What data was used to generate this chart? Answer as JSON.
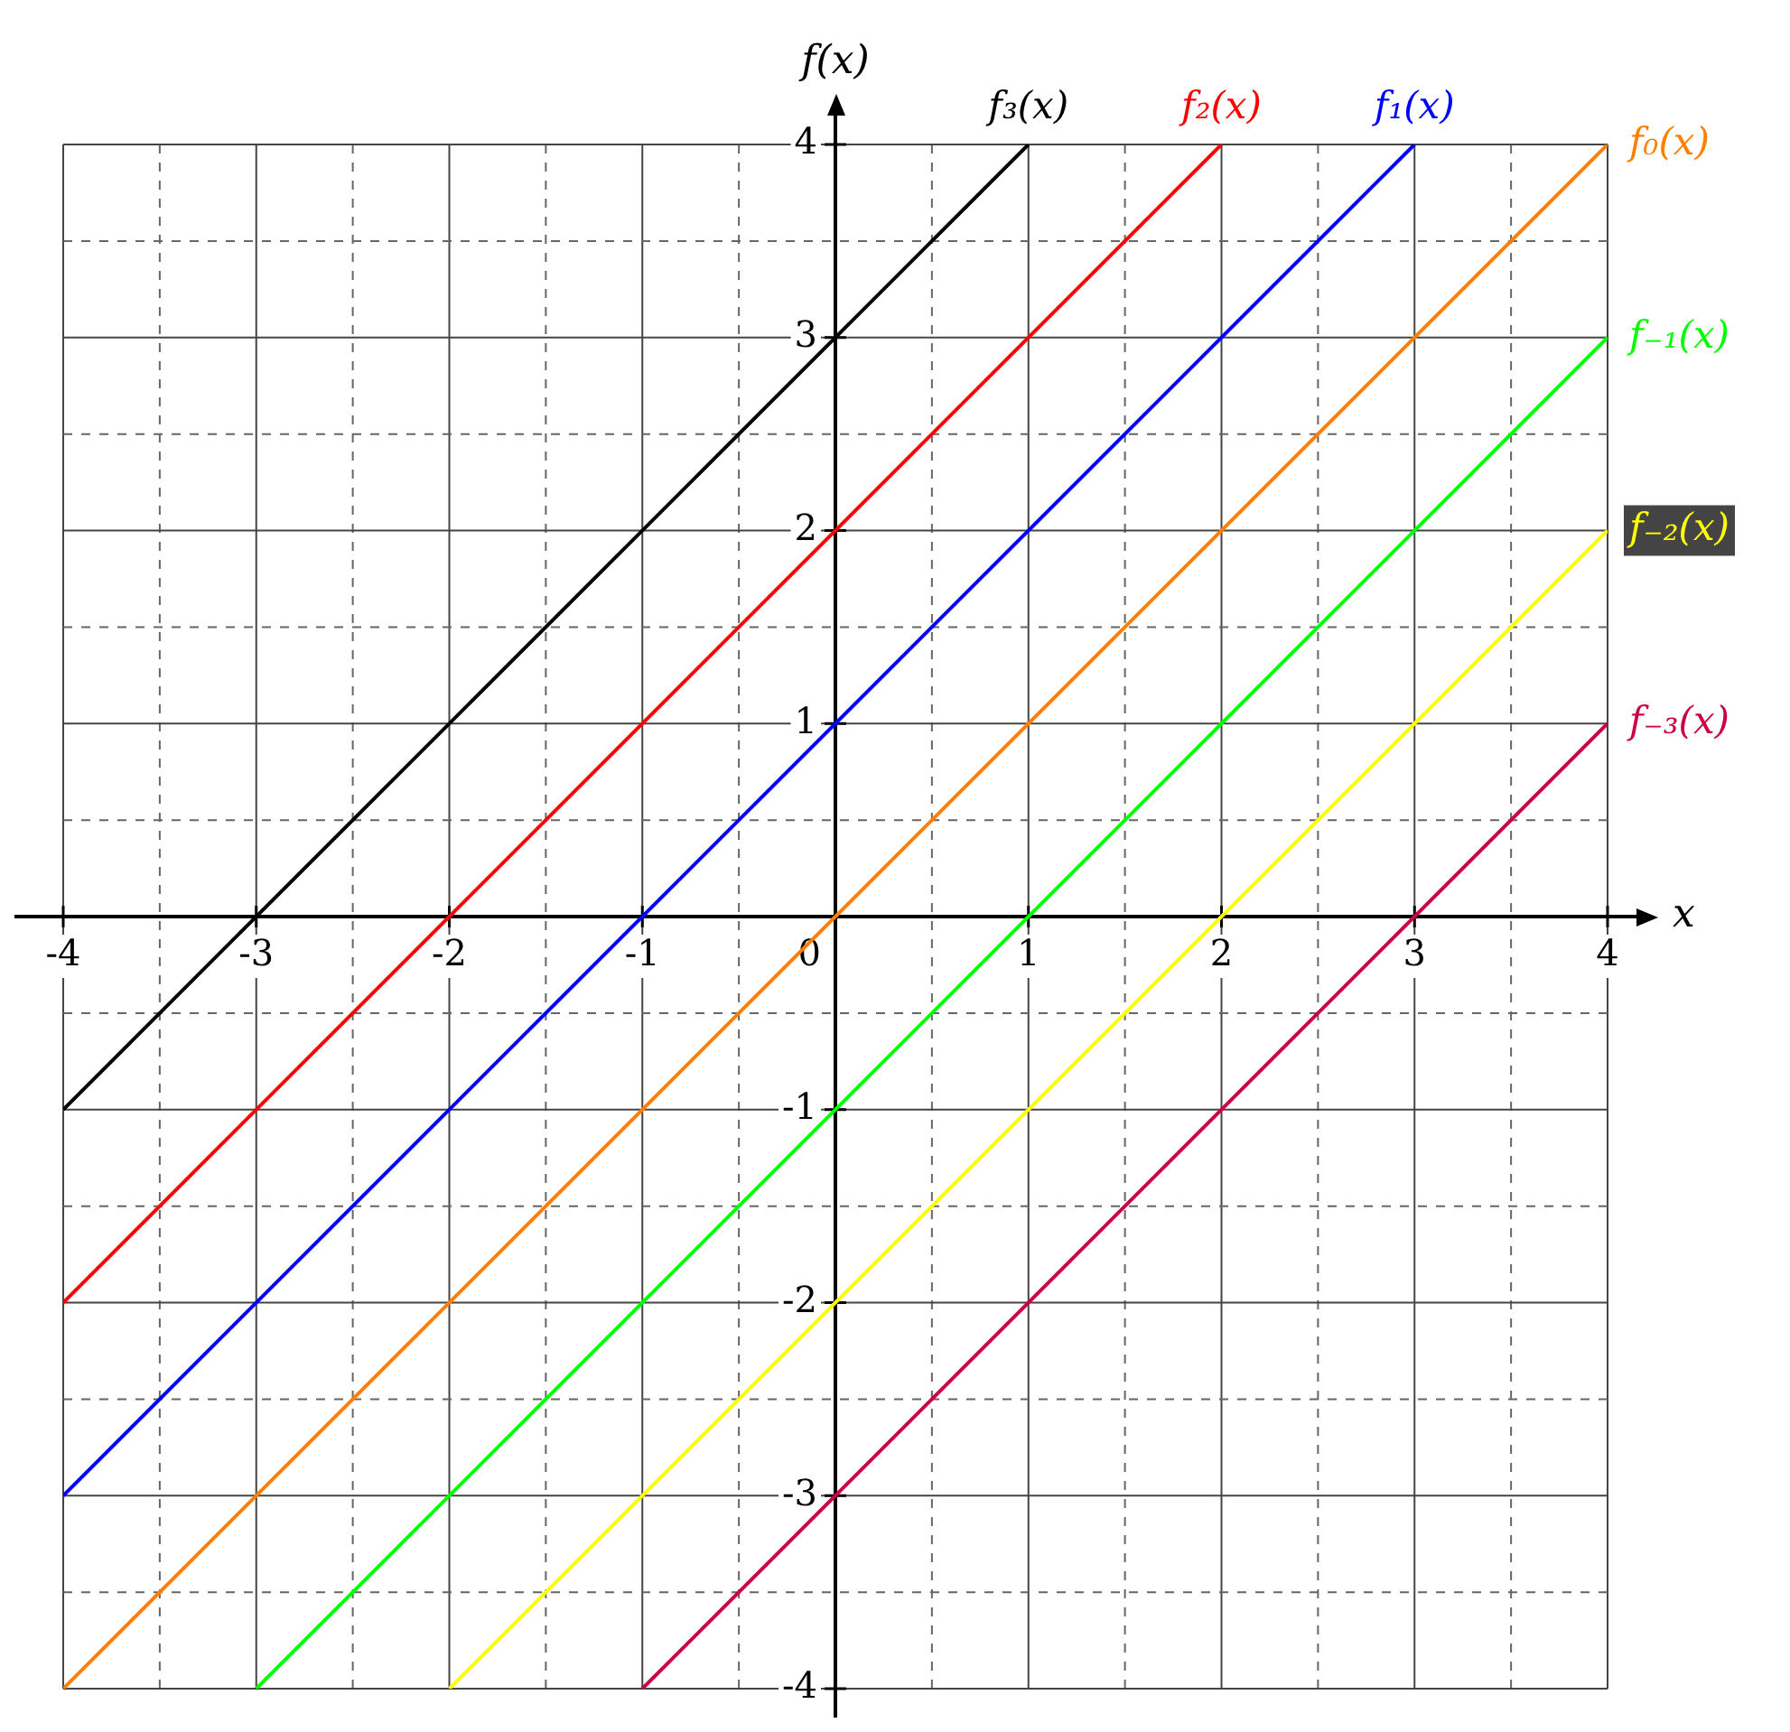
{
  "chart_data": {
    "type": "line",
    "xlabel": "x",
    "ylabel": "f(x)",
    "xlim": [
      -4,
      4
    ],
    "ylim": [
      -4,
      4
    ],
    "xticks": [
      -4,
      {
        "value": -3.5,
        "label": null
      },
      -3,
      {
        "value": -2.5,
        "label": null
      },
      -2,
      {
        "value": -1.5,
        "label": null
      },
      -1,
      {
        "value": -0.5,
        "label": null
      },
      0,
      {
        "value": 0.5,
        "label": null
      },
      1,
      {
        "value": 1.5,
        "label": null
      },
      2,
      {
        "value": 2.5,
        "label": null
      },
      3,
      {
        "value": 3.5,
        "label": null
      },
      4
    ],
    "yticks": [
      -4,
      {
        "value": -3.5,
        "label": null
      },
      -3,
      {
        "value": -2.5,
        "label": null
      },
      -2,
      {
        "value": -1.5,
        "label": null
      },
      -1,
      {
        "value": -0.5,
        "label": null
      },
      {
        "value": 0,
        "label": null
      },
      {
        "value": 0.5,
        "label": null
      },
      1,
      {
        "value": 1.5,
        "label": null
      },
      2,
      {
        "value": 2.5,
        "label": null
      },
      3,
      {
        "value": 3.5,
        "label": null
      },
      4
    ],
    "grid": true,
    "legend": false,
    "series": [
      {
        "name": "f₃(x)",
        "color": "#000000",
        "x": [
          -4,
          1
        ],
        "values": [
          -1,
          4
        ]
      },
      {
        "name": "f₂(x)",
        "color": "#ff0000",
        "x": [
          -4,
          2
        ],
        "values": [
          -2,
          4
        ]
      },
      {
        "name": "f₁(x)",
        "color": "#0000ff",
        "x": [
          -4,
          3
        ],
        "values": [
          -3,
          4
        ]
      },
      {
        "name": "f₀(x)",
        "color": "#ff8000",
        "x": [
          -4,
          4
        ],
        "values": [
          -4,
          4
        ]
      },
      {
        "name": "f₋₁(x)",
        "color": "#00ff00",
        "x": [
          -3,
          4
        ],
        "values": [
          -4,
          3
        ]
      },
      {
        "name": "f₋₂(x)",
        "color": "#ffff00",
        "x": [
          -2,
          4
        ],
        "values": [
          -4,
          2
        ]
      },
      {
        "name": "f₋₃(x)",
        "color": "#cc0044",
        "x": [
          -1,
          4
        ],
        "values": [
          -4,
          1
        ]
      }
    ]
  }
}
